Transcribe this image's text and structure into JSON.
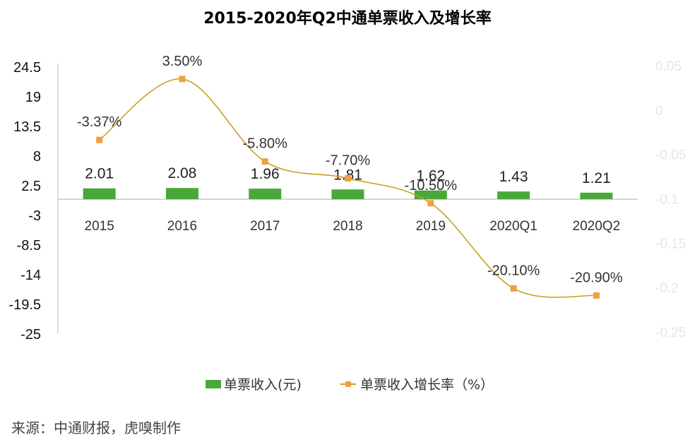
{
  "chart_data": {
    "type": "bar+line",
    "title": "2015-2020年Q2中通单票收入及增长率",
    "categories": [
      "2015",
      "2016",
      "2017",
      "2018",
      "2019",
      "2020Q1",
      "2020Q2"
    ],
    "series": [
      {
        "name": "单票收入(元)",
        "type": "bar",
        "axis": "left",
        "values": [
          2.01,
          2.08,
          1.96,
          1.81,
          1.62,
          1.43,
          1.21
        ],
        "labels": [
          "2.01",
          "2.08",
          "1.96",
          "1.81",
          "1.62",
          "1.43",
          "1.21"
        ],
        "color": "#4aa83a"
      },
      {
        "name": "单票收入增长率（%）",
        "type": "line",
        "axis": "right",
        "smooth": true,
        "values": [
          -0.0337,
          0.035,
          -0.058,
          -0.077,
          -0.105,
          -0.201,
          -0.209
        ],
        "labels": [
          "-3.37%",
          "3.50%",
          "-5.80%",
          "-7.70%",
          "-10.50%",
          "-20.10%",
          "-20.90%"
        ],
        "color": "#c8a020",
        "marker_color": "#f0a040"
      }
    ],
    "left_axis": {
      "ylim": [
        -25,
        24.5
      ],
      "ticks": [
        24.5,
        19,
        13.5,
        8,
        2.5,
        -3,
        -8.5,
        -14,
        -19.5,
        -25
      ],
      "tick_labels": [
        "24.5",
        "19",
        "13.5",
        "8",
        "2.5",
        "-3",
        "-8.5",
        "-14",
        "-19.5",
        "-25"
      ]
    },
    "right_axis": {
      "ylim": [
        -0.25,
        0.05
      ],
      "ticks": [
        0.05,
        0,
        -0.05,
        -0.1,
        -0.15,
        -0.2,
        -0.25
      ],
      "tick_labels": [
        "0.05",
        "0",
        "-0.05",
        "-0.1",
        "-0.15",
        "-0.2",
        "-0.25"
      ]
    },
    "grid": false,
    "legend_position": "bottom"
  },
  "legend": {
    "bar_label": "单票收入(元)",
    "line_label": "单票收入增长率（%）"
  },
  "source": "来源：中通财报，虎嗅制作"
}
